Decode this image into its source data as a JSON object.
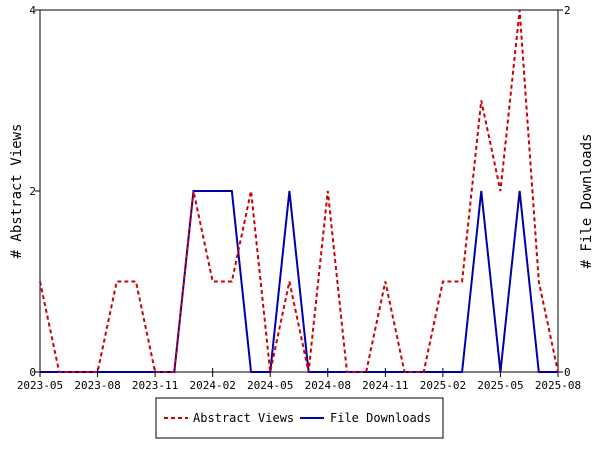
{
  "chart_data": {
    "type": "line",
    "title": "",
    "x_ticks": [
      "2023-05",
      "2023-08",
      "2023-11",
      "2024-02",
      "2024-05",
      "2024-08",
      "2024-11",
      "2025-02",
      "2025-05",
      "2025-08"
    ],
    "ylabel_left": "# Abstract Views",
    "ylabel_right": "# File Downloads",
    "y_left_ticks": [
      "0",
      "2",
      "4"
    ],
    "y_right_ticks": [
      "0",
      "2"
    ],
    "ylim_left": [
      0,
      4
    ],
    "ylim_right": [
      0,
      2
    ],
    "xlim": [
      "2023-05",
      "2025-08"
    ],
    "grid": false,
    "legend_position": "bottom-center",
    "series": [
      {
        "name": "Abstract Views",
        "axis": "left",
        "color": "#cc0000",
        "style": "dashed",
        "x": [
          "2023-05",
          "2023-06",
          "2023-07",
          "2023-08",
          "2023-09",
          "2023-10",
          "2023-11",
          "2023-12",
          "2024-01",
          "2024-02",
          "2024-03",
          "2024-04",
          "2024-05",
          "2024-06",
          "2024-07",
          "2024-08",
          "2024-09",
          "2024-10",
          "2024-11",
          "2024-12",
          "2025-01",
          "2025-02",
          "2025-03",
          "2025-04",
          "2025-05",
          "2025-06",
          "2025-07",
          "2025-08"
        ],
        "values": [
          1,
          0,
          0,
          0,
          1,
          1,
          0,
          0,
          2,
          1,
          1,
          2,
          0,
          1,
          0,
          2,
          0,
          0,
          1,
          0,
          0,
          1,
          1,
          3,
          2,
          4,
          1,
          0
        ]
      },
      {
        "name": "File Downloads",
        "axis": "right",
        "color": "#0000aa",
        "style": "solid",
        "x": [
          "2023-05",
          "2023-06",
          "2023-07",
          "2023-08",
          "2023-09",
          "2023-10",
          "2023-11",
          "2023-12",
          "2024-01",
          "2024-02",
          "2024-03",
          "2024-04",
          "2024-05",
          "2024-06",
          "2024-07",
          "2024-08",
          "2024-09",
          "2024-10",
          "2024-11",
          "2024-12",
          "2025-01",
          "2025-02",
          "2025-03",
          "2025-04",
          "2025-05",
          "2025-06",
          "2025-07",
          "2025-08"
        ],
        "values": [
          0,
          0,
          0,
          0,
          0,
          0,
          0,
          0,
          1,
          1,
          1,
          0,
          0,
          1,
          0,
          0,
          0,
          0,
          0,
          0,
          0,
          0,
          0,
          1,
          0,
          1,
          0,
          0
        ]
      }
    ]
  }
}
